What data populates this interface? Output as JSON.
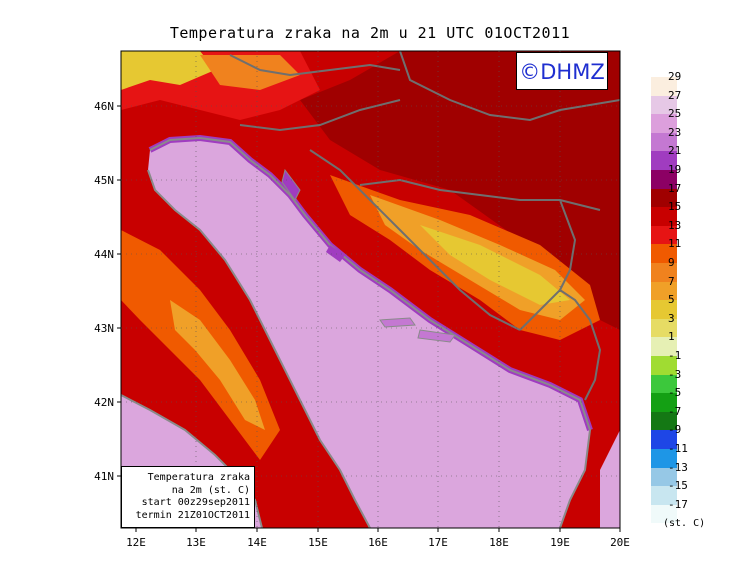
{
  "title": "Temperatura zraka na 2m u 21 UTC 01OCT2011",
  "copyright": "©DHMZ",
  "info_box": [
    "Temperatura zraka",
    "na 2m (st. C)",
    "start 00z29sep2011",
    "termin 21Z01OCT2011"
  ],
  "lat_labels": [
    "46N",
    "45N",
    "44N",
    "43N",
    "42N",
    "41N"
  ],
  "lon_labels": [
    "12E",
    "13E",
    "14E",
    "15E",
    "16E",
    "17E",
    "18E",
    "19E",
    "20E"
  ],
  "colorbar": {
    "labels": [
      "29",
      "27",
      "25",
      "23",
      "21",
      "19",
      "17",
      "15",
      "13",
      "11",
      "9",
      "7",
      "5",
      "3",
      "1",
      "-1",
      "-3",
      "-5",
      "-7",
      "-9",
      "-11",
      "-13",
      "-15",
      "-17"
    ],
    "colors": [
      "#fbeedf",
      "#e6c8e6",
      "#dc9fdc",
      "#c478d2",
      "#a03cc0",
      "#8c0064",
      "#a00000",
      "#c80000",
      "#e61414",
      "#f05a00",
      "#f0821e",
      "#f0a028",
      "#e6c832",
      "#e6dc64",
      "#e6f0b4",
      "#a0dc32",
      "#3cc83c",
      "#14a014",
      "#147814",
      "#1e46e6",
      "#1e96e6",
      "#96c8e6",
      "#c8e6f0",
      "#f0fafa"
    ],
    "unit": "(st. C)"
  },
  "map_colors": {
    "sea": "#dba6dd",
    "coast": "#8a8a8a",
    "border": "#6f6f6f"
  }
}
